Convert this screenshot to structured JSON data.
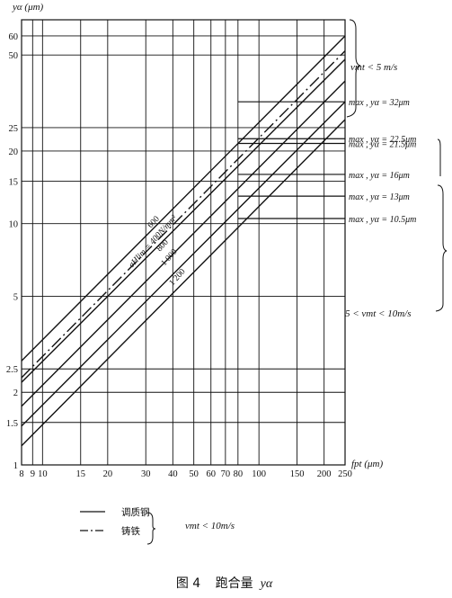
{
  "chart_data": {
    "type": "line",
    "xscale": "log",
    "yscale": "log",
    "ylabel": "yα (μm)",
    "xlabel": "fpt (μm)",
    "xlim": [
      8,
      250
    ],
    "ylim": [
      1,
      70
    ],
    "x_ticks": [
      8,
      9,
      10,
      15,
      20,
      30,
      40,
      50,
      60,
      70,
      80,
      100,
      150,
      200,
      250
    ],
    "x_tick_labels": [
      "8",
      "9",
      "10",
      "15",
      "20",
      "30",
      "40",
      "50",
      "60",
      "70",
      "80",
      "100",
      "150",
      "200",
      "250"
    ],
    "y_ticks": [
      1,
      1.5,
      2,
      2.5,
      5,
      10,
      15,
      20,
      25,
      50,
      60
    ],
    "y_tick_labels": [
      "1",
      "1.5",
      "2",
      "2.5",
      "5",
      "10",
      "15",
      "20",
      "25",
      "50",
      "60"
    ],
    "grid": true,
    "series": [
      {
        "name": "σHlim = 400N/mm²",
        "style": "solid",
        "x": [
          8,
          250
        ],
        "y": [
          2.7,
          60
        ]
      },
      {
        "name": "600",
        "style": "dashdot",
        "x": [
          8,
          250
        ],
        "y": [
          2.3,
          52
        ]
      },
      {
        "name": "600",
        "style": "solid",
        "x": [
          8,
          250
        ],
        "y": [
          2.2,
          48
        ]
      },
      {
        "name": "800",
        "style": "solid",
        "x": [
          8,
          250
        ],
        "y": [
          1.75,
          39
        ]
      },
      {
        "name": "1 000",
        "style": "solid",
        "x": [
          8,
          250
        ],
        "y": [
          1.45,
          32
        ]
      },
      {
        "name": "1 200",
        "style": "solid",
        "x": [
          8,
          250
        ],
        "y": [
          1.2,
          27
        ]
      }
    ],
    "max_caps": [
      {
        "label": "max , yα = 32μm",
        "value": 32
      },
      {
        "label": "max , yα = 22.5μm",
        "value": 22.5
      },
      {
        "label": "max , yα = 21.5μm",
        "value": 21.5
      },
      {
        "label": "max , yα = 16μm",
        "value": 16
      },
      {
        "label": "max , yα = 13μm",
        "value": 13
      },
      {
        "label": "max , yα = 10.5μm",
        "value": 10.5
      }
    ],
    "annotations": {
      "speed_high": "vmt < 5 m/s",
      "speed_low": "5 < vmt < 10m/s"
    },
    "legend": {
      "items": [
        {
          "label": "调质钢",
          "style": "solid"
        },
        {
          "label": "铸铁",
          "style": "dashdot"
        }
      ],
      "note": "vmt < 10m/s"
    }
  },
  "caption": {
    "fig": "图 4",
    "title": "跑合量",
    "symbol": "yα"
  }
}
